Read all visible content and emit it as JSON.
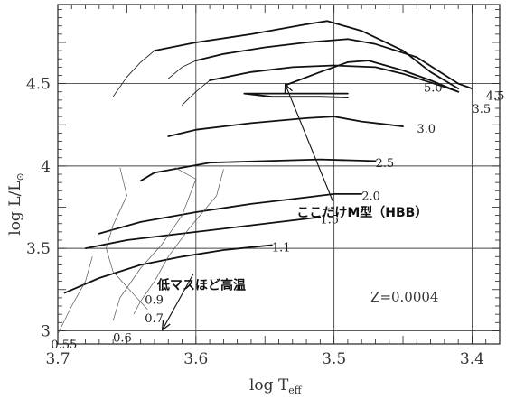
{
  "chart_data": {
    "type": "line",
    "xlabel_main": "log T",
    "xlabel_sub": "eff",
    "ylabel": "log L/L",
    "ylabel_symbol": "⊙",
    "x_reversed": true,
    "xlim": [
      3.7,
      3.38
    ],
    "ylim": [
      2.92,
      4.98
    ],
    "xticks": [
      "3.7",
      "3.6",
      "3.5",
      "3.4"
    ],
    "yticks": [
      "3",
      "3.5",
      "4",
      "4.5"
    ],
    "grid": true,
    "metallicity": "Z=0.0004",
    "series": [
      {
        "name": "5.0",
        "segments": [
          [
            [
              3.66,
              4.42
            ],
            [
              3.65,
              4.54
            ],
            [
              3.64,
              4.63
            ],
            [
              3.63,
              4.7
            ]
          ],
          [
            [
              3.63,
              4.7
            ],
            [
              3.6,
              4.75
            ],
            [
              3.56,
              4.8
            ],
            [
              3.52,
              4.86
            ],
            [
              3.505,
              4.88
            ],
            [
              3.48,
              4.82
            ],
            [
              3.45,
              4.7
            ],
            [
              3.43,
              4.57
            ],
            [
              3.41,
              4.47
            ]
          ]
        ]
      },
      {
        "name": "4.5",
        "segments": [
          [
            [
              3.62,
              4.53
            ],
            [
              3.61,
              4.6
            ],
            [
              3.6,
              4.64
            ]
          ],
          [
            [
              3.6,
              4.64
            ],
            [
              3.58,
              4.68
            ],
            [
              3.55,
              4.72
            ],
            [
              3.52,
              4.75
            ],
            [
              3.49,
              4.77
            ],
            [
              3.47,
              4.74
            ],
            [
              3.44,
              4.66
            ],
            [
              3.41,
              4.5
            ],
            [
              3.4,
              4.47
            ]
          ]
        ]
      },
      {
        "name": "3.5",
        "segments": [
          [
            [
              3.61,
              4.37
            ],
            [
              3.6,
              4.45
            ],
            [
              3.59,
              4.52
            ]
          ],
          [
            [
              3.59,
              4.52
            ],
            [
              3.56,
              4.57
            ],
            [
              3.53,
              4.6
            ],
            [
              3.5,
              4.61
            ],
            [
              3.47,
              4.6
            ],
            [
              3.45,
              4.56
            ],
            [
              3.42,
              4.48
            ],
            [
              3.41,
              4.45
            ]
          ],
          [
            [
              3.535,
              4.49
            ],
            [
              3.51,
              4.57
            ],
            [
              3.49,
              4.63
            ],
            [
              3.475,
              4.64
            ],
            [
              3.45,
              4.58
            ],
            [
              3.43,
              4.52
            ],
            [
              3.41,
              4.45
            ]
          ],
          [
            [
              3.49,
              4.44
            ],
            [
              3.53,
              4.44
            ],
            [
              3.565,
              4.44
            ],
            [
              3.545,
              4.42
            ],
            [
              3.51,
              4.42
            ],
            [
              3.49,
              4.415
            ]
          ]
        ]
      },
      {
        "name": "3.0",
        "segments": [
          [
            [
              3.62,
              4.18
            ],
            [
              3.6,
              4.22
            ],
            [
              3.56,
              4.26
            ],
            [
              3.52,
              4.29
            ],
            [
              3.5,
              4.3
            ],
            [
              3.48,
              4.27
            ],
            [
              3.46,
              4.25
            ],
            [
              3.45,
              4.24
            ]
          ]
        ]
      },
      {
        "name": "2.5",
        "segments": [
          [
            [
              3.64,
              3.91
            ],
            [
              3.63,
              3.96
            ],
            [
              3.61,
              3.99
            ],
            [
              3.59,
              4.02
            ],
            [
              3.55,
              4.03
            ],
            [
              3.51,
              4.04
            ],
            [
              3.47,
              4.03
            ]
          ]
        ]
      },
      {
        "name": "2.0",
        "segments": [
          [
            [
              3.67,
              3.59
            ],
            [
              3.64,
              3.66
            ],
            [
              3.6,
              3.72
            ],
            [
              3.56,
              3.77
            ],
            [
              3.52,
              3.81
            ],
            [
              3.5,
              3.83
            ],
            [
              3.48,
              3.83
            ]
          ]
        ]
      },
      {
        "name": "1.5",
        "segments": [
          [
            [
              3.68,
              3.5
            ],
            [
              3.65,
              3.55
            ],
            [
              3.62,
              3.58
            ],
            [
              3.59,
              3.61
            ],
            [
              3.56,
              3.64
            ],
            [
              3.53,
              3.67
            ],
            [
              3.51,
              3.69
            ]
          ]
        ]
      },
      {
        "name": "1.1",
        "segments": [
          [
            [
              3.695,
              3.23
            ],
            [
              3.67,
              3.32
            ],
            [
              3.64,
              3.4
            ],
            [
              3.61,
              3.45
            ],
            [
              3.58,
              3.49
            ],
            [
              3.545,
              3.52
            ]
          ]
        ]
      }
    ],
    "track_labels": [
      {
        "text": "5.0",
        "x": 3.435,
        "y": 4.48
      },
      {
        "text": "4.5",
        "x": 3.39,
        "y": 4.43
      },
      {
        "text": "3.5",
        "x": 3.4,
        "y": 4.35
      },
      {
        "text": "3.0",
        "x": 3.44,
        "y": 4.23
      },
      {
        "text": "2.5",
        "x": 3.47,
        "y": 4.02
      },
      {
        "text": "2.0",
        "x": 3.48,
        "y": 3.82
      },
      {
        "text": "1.5",
        "x": 3.51,
        "y": 3.68
      },
      {
        "text": "1.1",
        "x": 3.545,
        "y": 3.51
      },
      {
        "text": "0.9",
        "x": 3.637,
        "y": 3.19
      },
      {
        "text": "0.7",
        "x": 3.637,
        "y": 3.08
      },
      {
        "text": "0.6",
        "x": 3.66,
        "y": 2.96
      },
      {
        "text": "0.55",
        "x": 3.705,
        "y": 2.92
      }
    ],
    "annotations": [
      {
        "text": "ここだけM型（HBB）",
        "x": 3.527,
        "y": 3.72,
        "arrow_to": [
          3.535,
          4.49
        ]
      },
      {
        "text": "低マスほど高温",
        "x": 3.628,
        "y": 3.28,
        "arrow_to": [
          3.624,
          3.01
        ]
      }
    ]
  }
}
